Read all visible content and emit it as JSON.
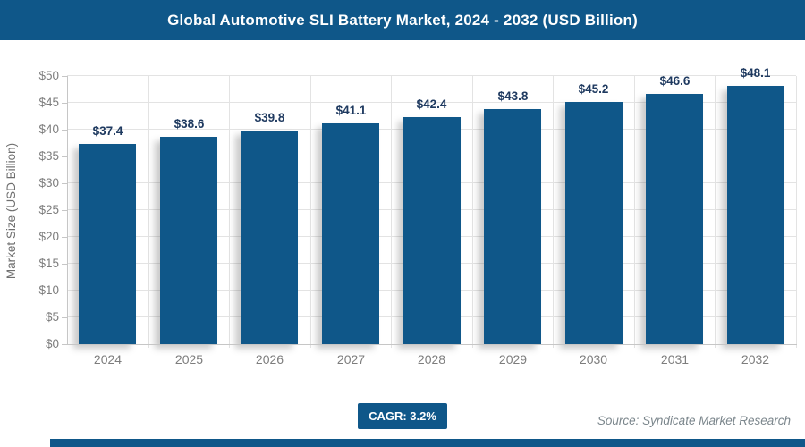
{
  "header": {
    "title": "Global Automotive SLI Battery Market, 2024 - 2032 (USD Billion)"
  },
  "footer": {
    "cagr_label": "CAGR: 3.2%",
    "source": "Source: Syndicate Market Research"
  },
  "colors": {
    "accent_blue": "#0F5789",
    "value_label_navy": "#1f3a60",
    "axis_text_gray": "#7d7d7d",
    "gridline_gray": "#e3e3e3"
  },
  "chart_data": {
    "type": "bar",
    "title": "Global Automotive SLI Battery Market, 2024 - 2032 (USD Billion)",
    "categories": [
      "2024",
      "2025",
      "2026",
      "2027",
      "2028",
      "2029",
      "2030",
      "2031",
      "2032"
    ],
    "values": [
      37.4,
      38.6,
      39.8,
      41.1,
      42.4,
      43.8,
      45.2,
      46.6,
      48.1
    ],
    "value_labels": [
      "$37.4",
      "$38.6",
      "$39.8",
      "$41.1",
      "$42.4",
      "$43.8",
      "$45.2",
      "$46.6",
      "$48.1"
    ],
    "xlabel": "",
    "ylabel": "Market Size (USD Billion)",
    "ylim": [
      0,
      50
    ],
    "ytick_step": 5,
    "ytick_labels": [
      "$0",
      "$5",
      "$10",
      "$15",
      "$20",
      "$25",
      "$30",
      "$35",
      "$40",
      "$45",
      "$50"
    ],
    "grid": true,
    "legend": false,
    "bar_color": "#0F5789",
    "annotations": {
      "cagr": "CAGR: 3.2%",
      "source": "Source: Syndicate Market Research"
    }
  }
}
